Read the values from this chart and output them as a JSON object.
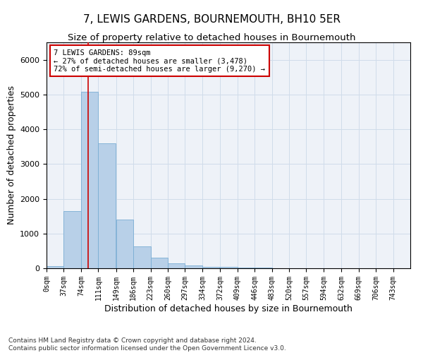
{
  "title": "7, LEWIS GARDENS, BOURNEMOUTH, BH10 5ER",
  "subtitle": "Size of property relative to detached houses in Bournemouth",
  "xlabel": "Distribution of detached houses by size in Bournemouth",
  "ylabel": "Number of detached properties",
  "bar_color": "#b8d0e8",
  "bar_edge_color": "#7aadd4",
  "grid_color": "#d0dcea",
  "background_color": "#eef2f8",
  "bins_left": [
    0,
    37,
    74,
    111,
    149,
    186,
    223,
    260,
    297,
    334,
    372,
    409,
    446,
    483,
    520,
    557,
    594,
    632,
    669,
    706
  ],
  "bin_width": 37,
  "bar_heights": [
    70,
    1640,
    5080,
    3590,
    1410,
    620,
    305,
    145,
    80,
    50,
    35,
    25,
    15,
    10,
    8,
    5,
    3,
    2,
    1,
    1
  ],
  "x_tick_labels": [
    "0sqm",
    "37sqm",
    "74sqm",
    "111sqm",
    "149sqm",
    "186sqm",
    "223sqm",
    "260sqm",
    "297sqm",
    "334sqm",
    "372sqm",
    "409sqm",
    "446sqm",
    "483sqm",
    "520sqm",
    "557sqm",
    "594sqm",
    "632sqm",
    "669sqm",
    "706sqm",
    "743sqm"
  ],
  "x_tick_positions": [
    0,
    37,
    74,
    111,
    149,
    186,
    223,
    260,
    297,
    334,
    372,
    409,
    446,
    483,
    520,
    557,
    594,
    632,
    669,
    706,
    743
  ],
  "ylim": [
    0,
    6500
  ],
  "xlim": [
    0,
    780
  ],
  "property_size": 89,
  "red_line_color": "#cc0000",
  "annotation_text": "7 LEWIS GARDENS: 89sqm\n← 27% of detached houses are smaller (3,478)\n72% of semi-detached houses are larger (9,270) →",
  "annotation_box_color": "#ffffff",
  "annotation_box_edge": "#cc0000",
  "footer_line1": "Contains HM Land Registry data © Crown copyright and database right 2024.",
  "footer_line2": "Contains public sector information licensed under the Open Government Licence v3.0.",
  "title_fontsize": 11,
  "subtitle_fontsize": 9.5,
  "axis_label_fontsize": 9,
  "tick_fontsize": 7,
  "annotation_fontsize": 7.5,
  "footer_fontsize": 6.5
}
